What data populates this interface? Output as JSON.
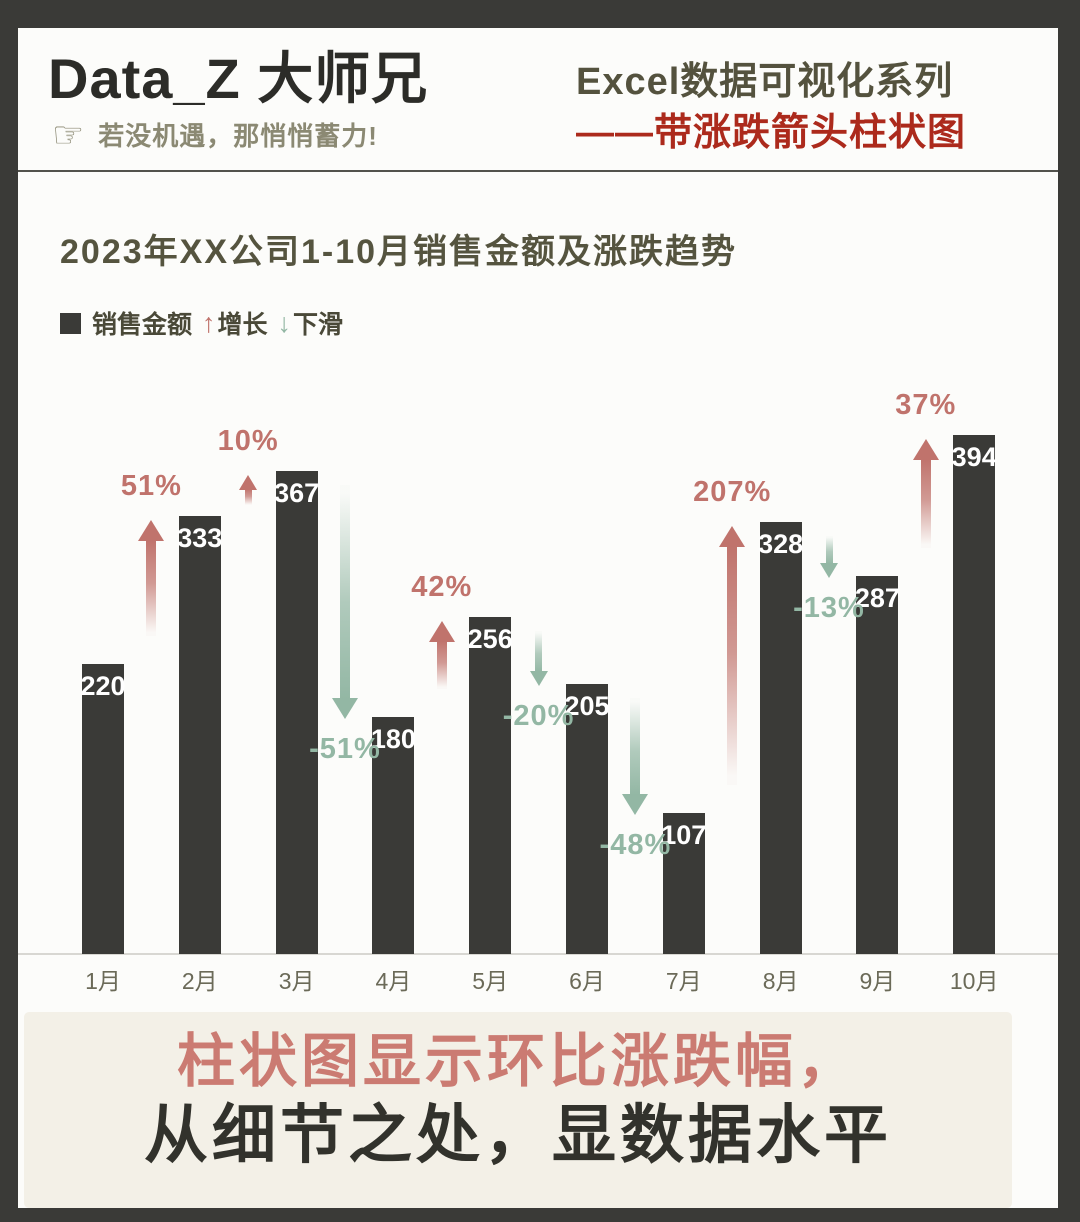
{
  "header": {
    "brand": "Data_Z 大师兄",
    "hand_icon": "☞",
    "tagline": "若没机遇，那悄悄蓄力!",
    "series_title": "Excel数据可视化系列",
    "series_subtitle": "——带涨跌箭头柱状图",
    "accent_color": "#ac2a1c"
  },
  "chart_data": {
    "type": "bar",
    "title": "2023年XX公司1-10月销售金额及涨跌趋势",
    "series_name": "销售金额",
    "categories": [
      "1月",
      "2月",
      "3月",
      "4月",
      "5月",
      "6月",
      "7月",
      "8月",
      "9月",
      "10月"
    ],
    "values": [
      220,
      333,
      367,
      180,
      256,
      205,
      107,
      328,
      287,
      394
    ],
    "changes": [
      {
        "from": "1月",
        "to": "2月",
        "label": "51%",
        "direction": "up"
      },
      {
        "from": "2月",
        "to": "3月",
        "label": "10%",
        "direction": "up"
      },
      {
        "from": "3月",
        "to": "4月",
        "label": "-51%",
        "direction": "down"
      },
      {
        "from": "4月",
        "to": "5月",
        "label": "42%",
        "direction": "up"
      },
      {
        "from": "5月",
        "to": "6月",
        "label": "-20%",
        "direction": "down"
      },
      {
        "from": "6月",
        "to": "7月",
        "label": "-48%",
        "direction": "down"
      },
      {
        "from": "7月",
        "to": "8月",
        "label": "207%",
        "direction": "up"
      },
      {
        "from": "8月",
        "to": "9月",
        "label": "-13%",
        "direction": "down"
      },
      {
        "from": "9月",
        "to": "10月",
        "label": "37%",
        "direction": "up"
      }
    ],
    "legend": {
      "sales_label": "销售金额",
      "up_glyph": "↑",
      "up_label": "增长",
      "down_glyph": "↓",
      "down_label": "下滑"
    },
    "colors": {
      "bar": "#3a3a37",
      "up": "#c0736c",
      "down": "#93b7a4",
      "value_label": "#ffffff"
    },
    "ylim": [
      0,
      420
    ],
    "grid": false,
    "legend_position": "top-left"
  },
  "footer": {
    "line1": "柱状图显示环比涨跌幅，",
    "line2": "从细节之处，显数据水平",
    "line1_color": "#cb7b72",
    "line2_color": "#32322c",
    "bg_color": "#f3f0e7"
  }
}
